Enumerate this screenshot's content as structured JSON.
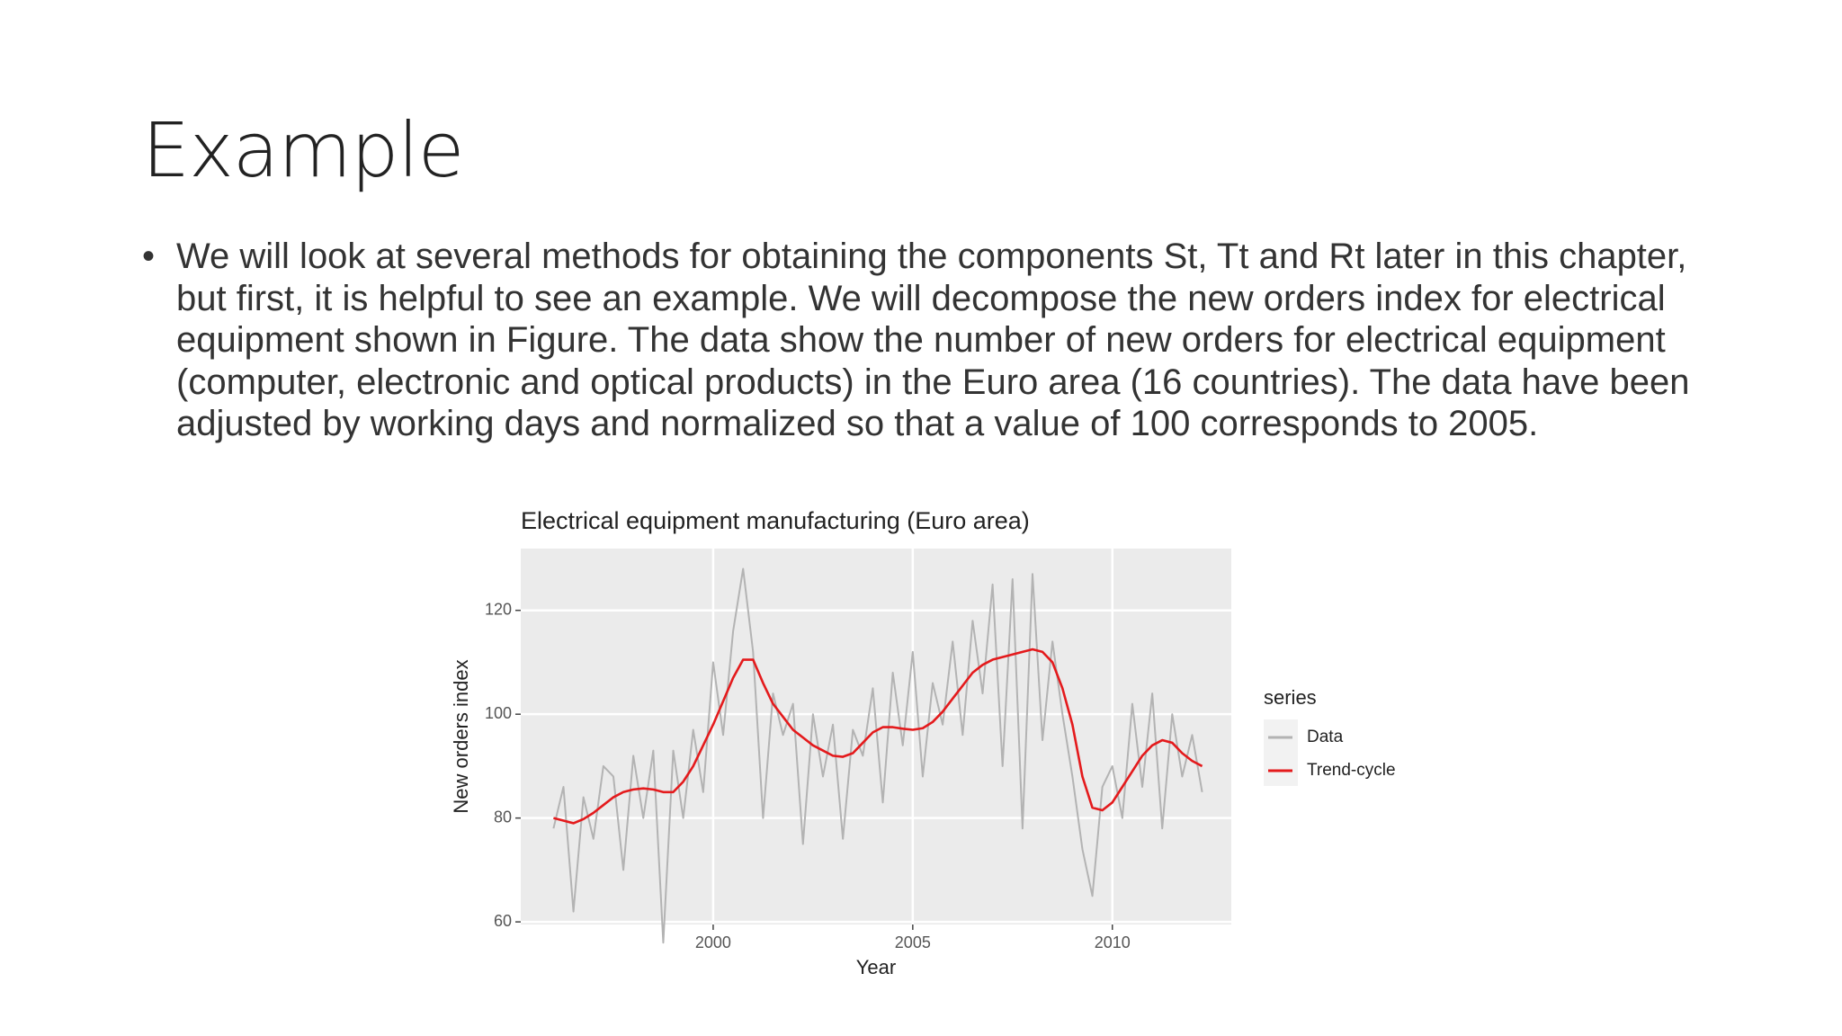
{
  "slide": {
    "title": "Example",
    "bullets": [
      "We will look at several methods for obtaining the components St, Tt and Rt later in this chapter, but first, it is helpful to see an example. We will decompose the new orders index for electrical equipment shown in Figure. The data show the number of new orders for electrical equipment (computer, electronic and optical products) in the Euro area (16 countries). The data have been adjusted by working days and normalized so that a value of 100 corresponds to 2005."
    ]
  },
  "chart_data": {
    "type": "line",
    "title": "Electrical equipment manufacturing (Euro area)",
    "x_label": "Year",
    "y_label": "New orders index",
    "legend_title": "series",
    "x": [
      1996,
      1996.25,
      1996.5,
      1996.75,
      1997,
      1997.25,
      1997.5,
      1997.75,
      1998,
      1998.25,
      1998.5,
      1998.75,
      1999,
      1999.25,
      1999.5,
      1999.75,
      2000,
      2000.25,
      2000.5,
      2000.75,
      2001,
      2001.25,
      2001.5,
      2001.75,
      2002,
      2002.25,
      2002.5,
      2002.75,
      2003,
      2003.25,
      2003.5,
      2003.75,
      2004,
      2004.25,
      2004.5,
      2004.75,
      2005,
      2005.25,
      2005.5,
      2005.75,
      2006,
      2006.25,
      2006.5,
      2006.75,
      2007,
      2007.25,
      2007.5,
      2007.75,
      2008,
      2008.25,
      2008.5,
      2008.75,
      2009,
      2009.25,
      2009.5,
      2009.75,
      2010,
      2010.25,
      2010.5,
      2010.75,
      2011,
      2011.25,
      2011.5,
      2011.75,
      2012,
      2012.25
    ],
    "series": [
      {
        "name": "Data",
        "color": "#b3b3b3",
        "values": [
          78,
          86,
          62,
          84,
          76,
          90,
          88,
          70,
          92,
          80,
          93,
          56,
          93,
          80,
          97,
          85,
          110,
          96,
          116,
          128,
          112,
          80,
          104,
          96,
          102,
          75,
          100,
          88,
          98,
          76,
          97,
          92,
          105,
          83,
          108,
          94,
          112,
          88,
          106,
          98,
          114,
          96,
          118,
          104,
          125,
          90,
          126,
          78,
          127,
          95,
          114,
          100,
          88,
          74,
          65,
          86,
          90,
          80,
          102,
          86,
          104,
          78,
          100,
          88,
          96,
          85
        ]
      },
      {
        "name": "Trend-cycle",
        "color": "#e41a1c",
        "values": [
          80,
          79.5,
          79,
          79.8,
          81,
          82.5,
          84,
          85,
          85.5,
          85.7,
          85.5,
          85,
          85,
          87,
          90,
          94,
          98,
          102.5,
          107,
          110.5,
          110.5,
          106,
          102,
          99.5,
          97,
          95.5,
          94,
          93,
          92,
          91.8,
          92.5,
          94.5,
          96.5,
          97.5,
          97.5,
          97.2,
          97,
          97.3,
          98.5,
          100.5,
          103,
          105.5,
          108,
          109.5,
          110.5,
          111,
          111.5,
          112,
          112.5,
          112,
          110,
          105,
          98,
          88,
          82,
          81.5,
          83,
          86,
          89,
          92,
          94,
          95,
          94.5,
          92.5,
          91,
          90
        ]
      }
    ],
    "xlim": [
      1995.18,
      2012.98
    ],
    "ylim": [
      59.5,
      131.9
    ],
    "xticks": [
      2000,
      2005,
      2010
    ],
    "yticks": [
      60,
      80,
      100,
      120
    ],
    "grid": true
  }
}
